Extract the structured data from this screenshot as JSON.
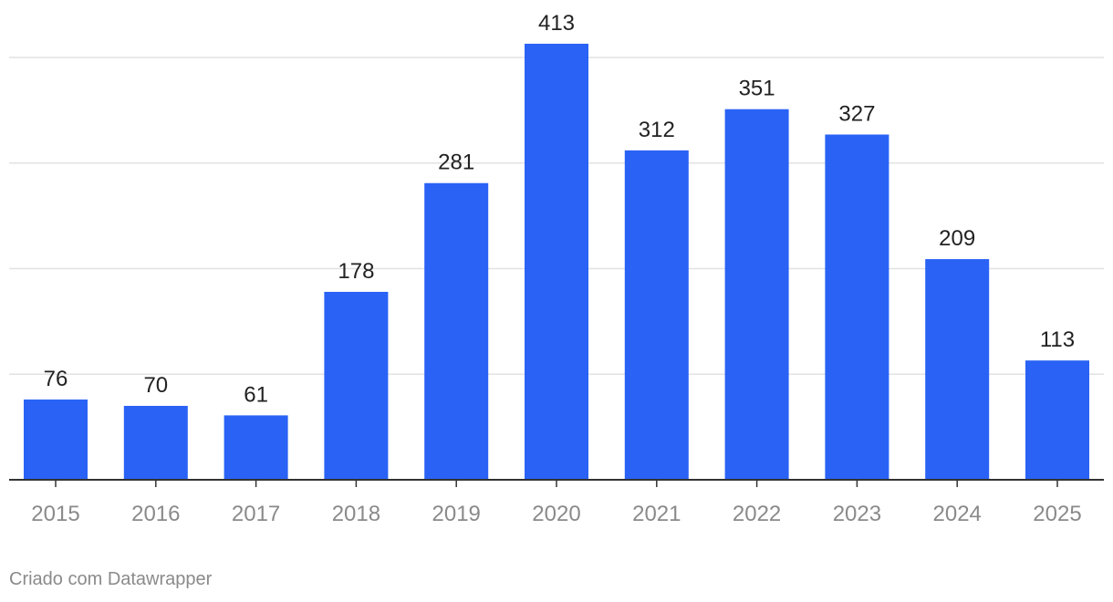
{
  "chart_data": {
    "type": "bar",
    "categories": [
      "2015",
      "2016",
      "2017",
      "2018",
      "2019",
      "2020",
      "2021",
      "2022",
      "2023",
      "2024",
      "2025"
    ],
    "values": [
      76,
      70,
      61,
      178,
      281,
      413,
      312,
      351,
      327,
      209,
      113
    ],
    "title": "",
    "xlabel": "",
    "ylabel": "",
    "ylim": [
      0,
      400
    ],
    "grid": true,
    "gridlines_at": [
      100,
      200,
      300,
      400
    ],
    "bar_color": "#2962f5",
    "data_labels": true
  },
  "footer": {
    "credit": "Criado com Datawrapper"
  }
}
